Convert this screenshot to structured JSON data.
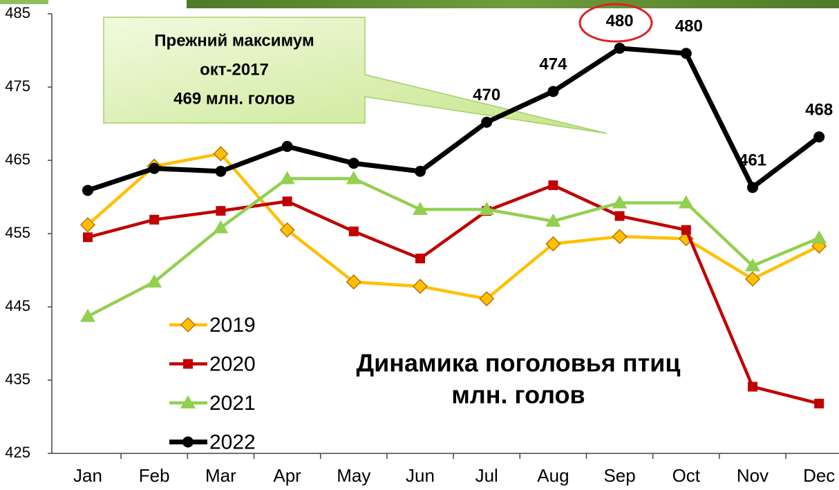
{
  "chart_data": {
    "type": "line",
    "title": "Динамика поголовья птиц",
    "subtitle": "млн. голов",
    "annotation": [
      "Прежний максимум",
      "окт-2017",
      "469 млн. голов"
    ],
    "categories": [
      "Jan",
      "Feb",
      "Mar",
      "Apr",
      "May",
      "Jun",
      "Jul",
      "Aug",
      "Sep",
      "Oct",
      "Nov",
      "Dec"
    ],
    "series": [
      {
        "name": "2019",
        "color": "#ffc000",
        "marker": "diamond",
        "values": [
          456.2,
          464.2,
          465.9,
          455.5,
          448.4,
          447.8,
          446.1,
          453.6,
          454.6,
          454.3,
          448.8,
          453.3
        ]
      },
      {
        "name": "2020",
        "color": "#c00000",
        "marker": "square",
        "values": [
          454.5,
          456.9,
          458.1,
          459.4,
          455.3,
          451.6,
          458.1,
          461.6,
          457.4,
          455.5,
          434.1,
          431.8
        ]
      },
      {
        "name": "2021",
        "color": "#92d050",
        "marker": "triangle",
        "values": [
          443.7,
          448.4,
          455.8,
          462.5,
          462.5,
          458.3,
          458.3,
          456.7,
          459.2,
          459.2,
          450.6,
          454.4
        ]
      },
      {
        "name": "2022",
        "color": "#000000",
        "marker": "circle",
        "values": [
          460.9,
          463.9,
          463.5,
          466.9,
          464.6,
          463.5,
          470.2,
          474.4,
          480.3,
          479.6,
          461.3,
          468.2
        ],
        "value_labels": [
          null,
          null,
          null,
          null,
          null,
          null,
          "470",
          "474",
          "480",
          "480",
          "461",
          "468"
        ]
      }
    ],
    "ylim": [
      425,
      485
    ],
    "yticks": [
      425,
      435,
      445,
      455,
      465,
      475,
      485
    ],
    "grid": false
  }
}
